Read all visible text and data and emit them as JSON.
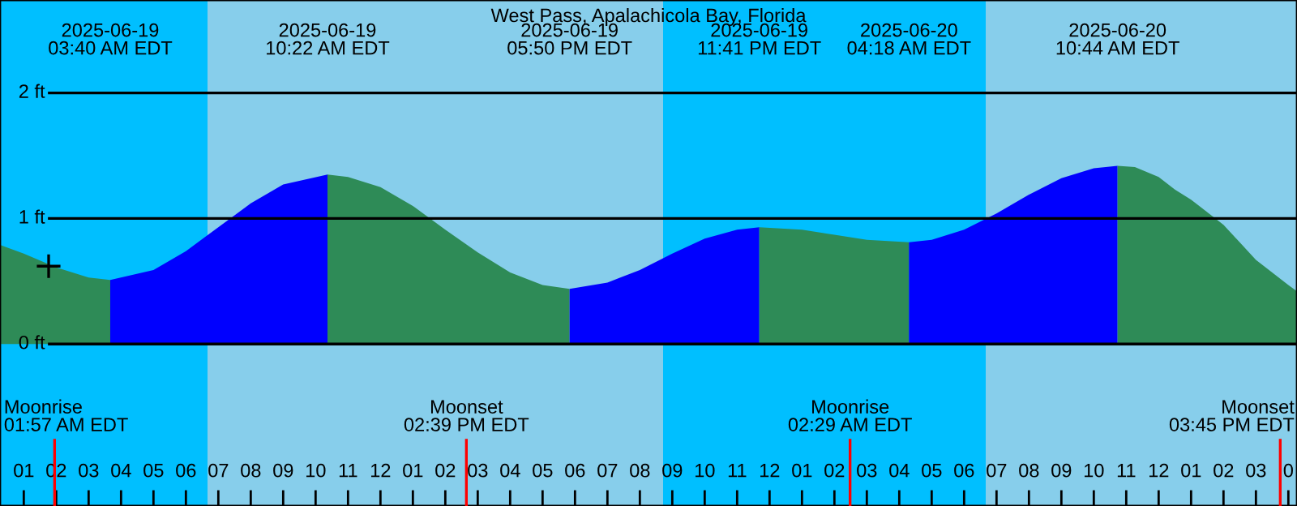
{
  "chart_data": {
    "type": "area",
    "title": "West Pass, Apalachicola Bay, Florida",
    "xlim": [
      "2025-06-19T00:16",
      "2025-06-20T16:16"
    ],
    "ylim": [
      -1.29,
      2.74
    ],
    "xticks": [
      {
        "value": "2025-06-19T01:00",
        "label": "01"
      },
      {
        "value": "2025-06-19T02:00",
        "label": "02"
      },
      {
        "value": "2025-06-19T03:00",
        "label": "03"
      },
      {
        "value": "2025-06-19T04:00",
        "label": "04"
      },
      {
        "value": "2025-06-19T05:00",
        "label": "05"
      },
      {
        "value": "2025-06-19T06:00",
        "label": "06"
      },
      {
        "value": "2025-06-19T07:00",
        "label": "07"
      },
      {
        "value": "2025-06-19T08:00",
        "label": "08"
      },
      {
        "value": "2025-06-19T09:00",
        "label": "09"
      },
      {
        "value": "2025-06-19T10:00",
        "label": "10"
      },
      {
        "value": "2025-06-19T11:00",
        "label": "11"
      },
      {
        "value": "2025-06-19T12:00",
        "label": "12"
      },
      {
        "value": "2025-06-19T13:00",
        "label": "01"
      },
      {
        "value": "2025-06-19T14:00",
        "label": "02"
      },
      {
        "value": "2025-06-19T15:00",
        "label": "03"
      },
      {
        "value": "2025-06-19T16:00",
        "label": "04"
      },
      {
        "value": "2025-06-19T17:00",
        "label": "05"
      },
      {
        "value": "2025-06-19T18:00",
        "label": "06"
      },
      {
        "value": "2025-06-19T19:00",
        "label": "07"
      },
      {
        "value": "2025-06-19T20:00",
        "label": "08"
      },
      {
        "value": "2025-06-19T21:00",
        "label": "09"
      },
      {
        "value": "2025-06-19T22:00",
        "label": "10"
      },
      {
        "value": "2025-06-19T23:00",
        "label": "11"
      },
      {
        "value": "2025-06-20T00:00",
        "label": "12"
      },
      {
        "value": "2025-06-20T01:00",
        "label": "01"
      },
      {
        "value": "2025-06-20T02:00",
        "label": "02"
      },
      {
        "value": "2025-06-20T03:00",
        "label": "03"
      },
      {
        "value": "2025-06-20T04:00",
        "label": "04"
      },
      {
        "value": "2025-06-20T05:00",
        "label": "05"
      },
      {
        "value": "2025-06-20T06:00",
        "label": "06"
      },
      {
        "value": "2025-06-20T07:00",
        "label": "07"
      },
      {
        "value": "2025-06-20T08:00",
        "label": "08"
      },
      {
        "value": "2025-06-20T09:00",
        "label": "09"
      },
      {
        "value": "2025-06-20T10:00",
        "label": "10"
      },
      {
        "value": "2025-06-20T11:00",
        "label": "11"
      },
      {
        "value": "2025-06-20T12:00",
        "label": "12"
      },
      {
        "value": "2025-06-20T13:00",
        "label": "01"
      },
      {
        "value": "2025-06-20T14:00",
        "label": "02"
      },
      {
        "value": "2025-06-20T15:00",
        "label": "03"
      },
      {
        "value": "2025-06-20T16:00",
        "label": "0"
      }
    ],
    "yticks": [
      {
        "value": 0,
        "label": "0 ft"
      },
      {
        "value": 1,
        "label": "1 ft"
      },
      {
        "value": 2,
        "label": "2 ft"
      }
    ],
    "grid": "y",
    "bands": [
      {
        "axis": "x",
        "from": "2025-06-19T00:16",
        "to": "2025-06-19T06:40",
        "color": "#00bfff"
      },
      {
        "axis": "x",
        "from": "2025-06-19T06:40",
        "to": "2025-06-19T20:43",
        "color": "#87ceeb"
      },
      {
        "axis": "x",
        "from": "2025-06-19T20:43",
        "to": "2025-06-20T06:40",
        "color": "#00bfff"
      },
      {
        "axis": "x",
        "from": "2025-06-20T06:40",
        "to": "2025-06-20T16:16",
        "color": "#87ceeb"
      }
    ],
    "ref_lines": [
      {
        "axis": "x",
        "value": "2025-06-19T01:57",
        "label": "Moonrise\n01:57 AM EDT",
        "color": "#ff0000"
      },
      {
        "axis": "x",
        "value": "2025-06-19T14:39",
        "label": "Moonset\n02:39 PM EDT",
        "color": "#ff0000"
      },
      {
        "axis": "x",
        "value": "2025-06-20T02:29",
        "label": "Moonrise\n02:29 AM EDT",
        "color": "#ff0000"
      },
      {
        "axis": "x",
        "value": "2025-06-20T15:45",
        "label": "Moonset\n03:45 PM EDT",
        "color": "#ff0000"
      }
    ],
    "series": [
      {
        "color": "#2e8b57",
        "x": [
          "2025-06-19T00:16",
          "2025-06-19T01:00",
          "2025-06-19T02:00",
          "2025-06-19T03:00",
          "2025-06-19T03:40"
        ],
        "values": [
          0.79,
          0.72,
          0.61,
          0.53,
          0.51
        ]
      },
      {
        "color": "#0000ff",
        "x": [
          "2025-06-19T03:40",
          "2025-06-19T05:00",
          "2025-06-19T06:00",
          "2025-06-19T07:00",
          "2025-06-19T08:00",
          "2025-06-19T09:00",
          "2025-06-19T10:22"
        ],
        "values": [
          0.51,
          0.59,
          0.74,
          0.93,
          1.12,
          1.27,
          1.35
        ]
      },
      {
        "color": "#2e8b57",
        "x": [
          "2025-06-19T10:22",
          "2025-06-19T11:00",
          "2025-06-19T12:00",
          "2025-06-19T13:00",
          "2025-06-19T14:00",
          "2025-06-19T15:00",
          "2025-06-19T16:00",
          "2025-06-19T17:00",
          "2025-06-19T17:50"
        ],
        "values": [
          1.35,
          1.33,
          1.25,
          1.1,
          0.91,
          0.73,
          0.57,
          0.47,
          0.44
        ]
      },
      {
        "color": "#0000ff",
        "x": [
          "2025-06-19T17:50",
          "2025-06-19T19:00",
          "2025-06-19T20:00",
          "2025-06-19T21:00",
          "2025-06-19T22:00",
          "2025-06-19T23:00",
          "2025-06-19T23:41"
        ],
        "values": [
          0.44,
          0.49,
          0.59,
          0.72,
          0.84,
          0.91,
          0.93
        ]
      },
      {
        "color": "#2e8b57",
        "x": [
          "2025-06-19T23:41",
          "2025-06-20T01:00",
          "2025-06-20T02:00",
          "2025-06-20T03:00",
          "2025-06-20T04:18"
        ],
        "values": [
          0.93,
          0.91,
          0.87,
          0.83,
          0.81
        ]
      },
      {
        "color": "#0000ff",
        "x": [
          "2025-06-20T04:18",
          "2025-06-20T05:00",
          "2025-06-20T06:00",
          "2025-06-20T07:00",
          "2025-06-20T08:00",
          "2025-06-20T09:00",
          "2025-06-20T10:00",
          "2025-06-20T10:44"
        ],
        "values": [
          0.81,
          0.83,
          0.91,
          1.04,
          1.19,
          1.32,
          1.4,
          1.42
        ]
      },
      {
        "color": "#2e8b57",
        "x": [
          "2025-06-20T10:44",
          "2025-06-20T11:16",
          "2025-06-20T12:00",
          "2025-06-20T12:30",
          "2025-06-20T13:00",
          "2025-06-20T14:00",
          "2025-06-20T15:00",
          "2025-06-20T16:00",
          "2025-06-20T16:16"
        ],
        "values": [
          1.42,
          1.41,
          1.33,
          1.23,
          1.15,
          0.95,
          0.67,
          0.47,
          0.42
        ]
      },
      {
        "type": "scatter",
        "marker": "cross",
        "color": "#000000",
        "x": [
          "2025-06-19T01:46"
        ],
        "values": [
          0.62
        ]
      }
    ],
    "annotations": [
      "2025-06-19\n03:40 AM EDT",
      "2025-06-19\n10:22 AM EDT",
      "2025-06-19\n05:50 PM EDT",
      "2025-06-19\n11:41 PM EDT",
      "2025-06-20\n04:18 AM EDT",
      "2025-06-20\n10:44 AM EDT"
    ]
  }
}
